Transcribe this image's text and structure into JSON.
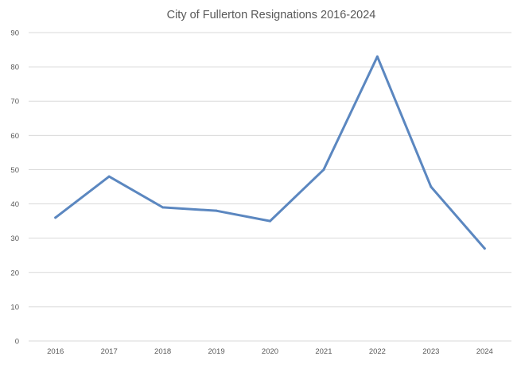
{
  "chart_data": {
    "type": "line",
    "title": "City of Fullerton Resignations 2016-2024",
    "categories": [
      "2016",
      "2017",
      "2018",
      "2019",
      "2020",
      "2021",
      "2022",
      "2023",
      "2024"
    ],
    "series": [
      {
        "values": [
          36,
          48,
          39,
          38,
          35,
          50,
          83,
          45,
          27
        ],
        "color": "#5b87c0"
      }
    ],
    "ylim": [
      0,
      90
    ],
    "yticks": [
      0,
      10,
      20,
      30,
      40,
      50,
      60,
      70,
      80,
      90
    ],
    "grid": true,
    "legend": "none"
  }
}
